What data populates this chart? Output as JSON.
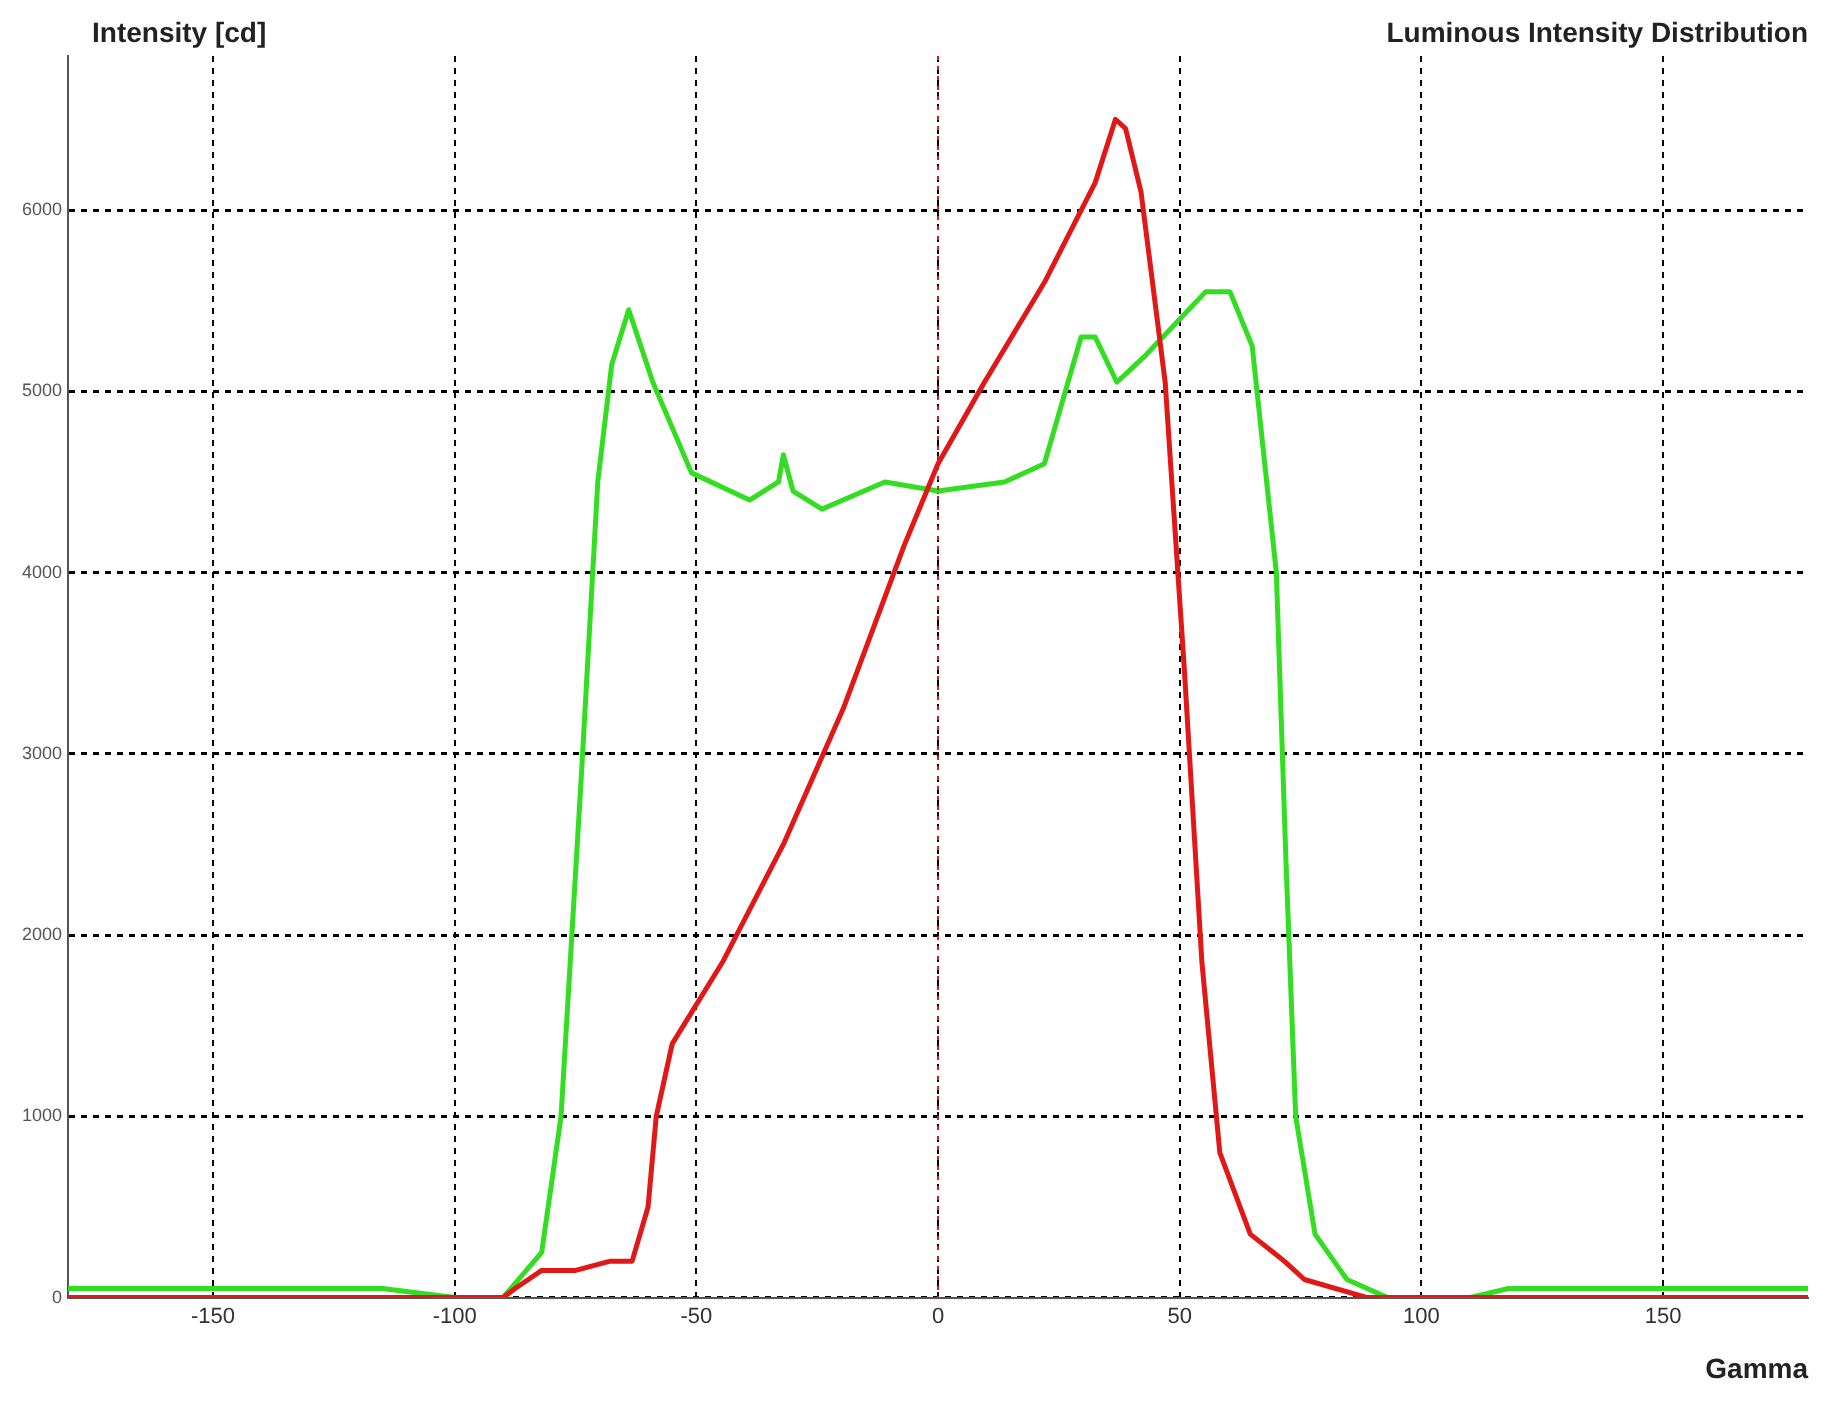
{
  "chart_data": {
    "type": "line",
    "title": "Luminous Intensity Distribution",
    "ylabel": "Intensity [cd]",
    "xlabel": "Gamma",
    "xlim": [
      -180,
      180
    ],
    "xticks": [
      -150,
      -100,
      -50,
      0,
      50,
      100,
      150
    ],
    "ylim": [
      0,
      6850
    ],
    "yticks": [
      0,
      1000,
      2000,
      3000,
      4000,
      5000,
      6000
    ],
    "grid": true,
    "legend": false,
    "marker": "none",
    "line_style": "solid",
    "ref_lines": [
      {
        "axis": "x",
        "value": 0,
        "color": "#d02020",
        "line_style": "dotted"
      }
    ],
    "series": [
      {
        "color": "#e01818",
        "x": [
          -180,
          -90,
          -87.5,
          -82,
          -75,
          -68,
          -63.3,
          -60,
          -58.3,
          -55,
          -44.6,
          -32,
          -19.6,
          -7,
          0,
          9.6,
          22,
          32.5,
          36.7,
          38.8,
          42,
          47,
          51,
          54.6,
          58.3,
          64.6,
          71.7,
          75.8,
          88.8,
          180
        ],
        "values": [
          0,
          0,
          50,
          150,
          150,
          200,
          200,
          500,
          1000,
          1400,
          1850,
          2500,
          3250,
          4150,
          4600,
          5050,
          5600,
          6150,
          6500,
          6450,
          6100,
          5050,
          3450,
          1850,
          800,
          350,
          200,
          100,
          0,
          0
        ]
      },
      {
        "color": "#33dd22",
        "x": [
          -180,
          -115,
          -100,
          -90,
          -82,
          -78,
          -73.75,
          -70.4,
          -67.5,
          -64,
          -59,
          -51,
          -39,
          -33,
          -32,
          -30,
          -24,
          -11,
          0,
          13.75,
          22,
          29.6,
          32.5,
          37,
          43,
          55.4,
          60.4,
          65,
          70,
          72,
          74,
          78,
          84.6,
          93,
          110,
          118,
          180
        ],
        "values": [
          50,
          50,
          0,
          0,
          250,
          1000,
          2900,
          4500,
          5150,
          5450,
          5050,
          4550,
          4400,
          4500,
          4650,
          4450,
          4350,
          4500,
          4450,
          4500,
          4600,
          5300,
          5300,
          5050,
          5200,
          5550,
          5550,
          5250,
          4000,
          2400,
          1000,
          350,
          100,
          0,
          0,
          50,
          50
        ]
      }
    ]
  }
}
